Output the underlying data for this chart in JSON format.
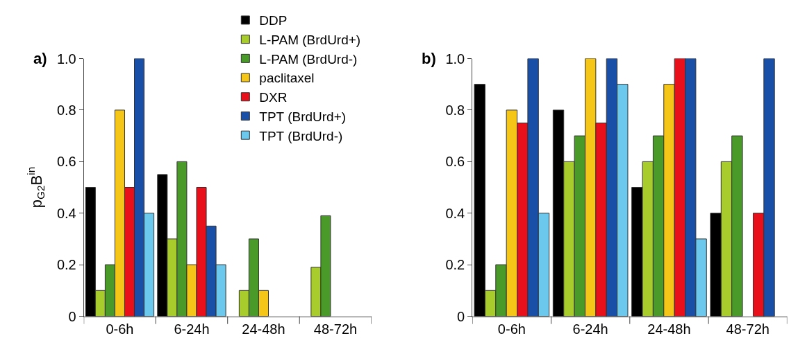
{
  "chart_data": [
    {
      "type": "bar",
      "title": "a)",
      "ylabel": "p$_{G2}$B$^{in}$",
      "categories": [
        "0-6h",
        "6-24h",
        "24-48h",
        "48-72h"
      ],
      "ylim": [
        0,
        1.0
      ],
      "yticks": [
        0,
        0.2,
        0.4,
        0.6,
        0.8,
        {
          "value": 1.0,
          "label": "1.0"
        }
      ],
      "legend": "top right",
      "series": [
        {
          "name": "DDP",
          "color": "#000000",
          "values": [
            0.5,
            0.55,
            null,
            null
          ]
        },
        {
          "name": "L-PAM (BrdUrd+)",
          "color": "#a8cc2c",
          "values": [
            0.1,
            0.3,
            0.1,
            0.19
          ]
        },
        {
          "name": "L-PAM (BrdUrd-)",
          "color": "#4a9a2a",
          "values": [
            0.2,
            0.6,
            0.3,
            0.39
          ]
        },
        {
          "name": "paclitaxel",
          "color": "#f5c518",
          "values": [
            0.8,
            0.2,
            0.1,
            null
          ]
        },
        {
          "name": "DXR",
          "color": "#e8101a",
          "values": [
            0.5,
            0.5,
            null,
            null
          ]
        },
        {
          "name": "TPT (BrdUrd+)",
          "color": "#1a4fa8",
          "values": [
            1.0,
            0.35,
            null,
            null
          ]
        },
        {
          "name": "TPT (BrdUrd-)",
          "color": "#6cc8ec",
          "values": [
            0.4,
            0.2,
            null,
            null
          ]
        }
      ]
    },
    {
      "type": "bar",
      "title": "b)",
      "categories": [
        "0-6h",
        "6-24h",
        "24-48h",
        "48-72h"
      ],
      "ylim": [
        0,
        1.0
      ],
      "yticks": [
        0,
        0.2,
        0.4,
        0.6,
        0.8,
        {
          "value": 1.0,
          "label": "1.0"
        }
      ],
      "series": [
        {
          "color": "#000000",
          "values": [
            0.9,
            0.8,
            0.5,
            0.4
          ]
        },
        {
          "color": "#a8cc2c",
          "values": [
            0.1,
            0.6,
            0.6,
            0.6
          ]
        },
        {
          "color": "#4a9a2a",
          "values": [
            0.2,
            0.7,
            0.7,
            0.7
          ]
        },
        {
          "color": "#f5c518",
          "values": [
            0.8,
            1.0,
            0.9,
            null
          ]
        },
        {
          "color": "#e8101a",
          "values": [
            0.75,
            0.75,
            1.0,
            0.4
          ]
        },
        {
          "color": "#1a4fa8",
          "values": [
            1.0,
            1.0,
            1.0,
            1.0
          ]
        },
        {
          "color": "#6cc8ec",
          "values": [
            0.4,
            0.9,
            0.3,
            null
          ]
        }
      ]
    }
  ]
}
